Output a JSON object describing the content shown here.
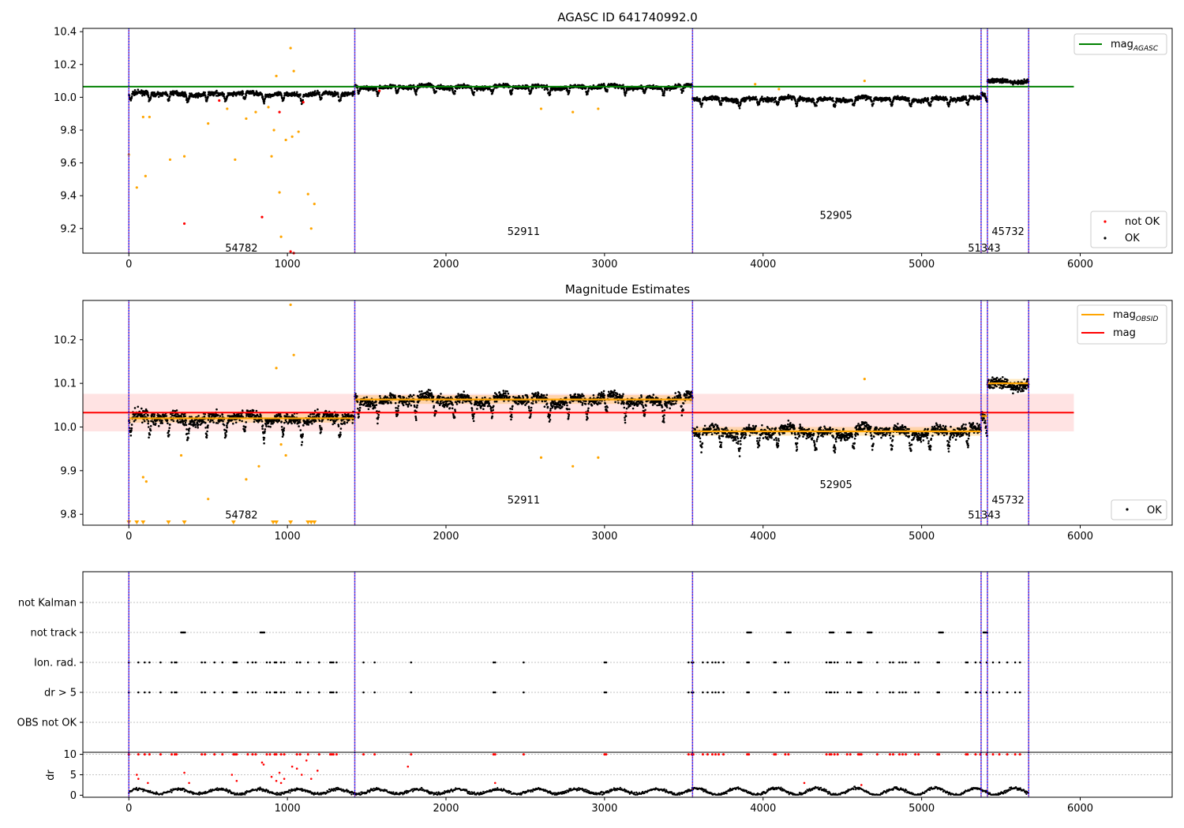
{
  "figure": {
    "title_top": "AGASC ID 641740992.0",
    "title_mid": "Magnitude Estimates"
  },
  "colors": {
    "ok": "#000000",
    "not_ok": "#ff0000",
    "obsid_mag": "#ffa500",
    "agasc_line": "#008000",
    "mean_line": "#ff0000",
    "band_fill": "#ffcccc",
    "obs_divider": "#800080",
    "divider_blue": "#0000ff"
  },
  "chart_data": [
    {
      "type": "scatter",
      "title": "AGASC ID 641740992.0",
      "xlim": [
        -290,
        6580
      ],
      "ylim": [
        9.05,
        10.42
      ],
      "xticks": [
        "0",
        "1000",
        "2000",
        "3000",
        "4000",
        "5000",
        "6000"
      ],
      "yticks": [
        "9.2",
        "9.4",
        "9.6",
        "9.8",
        "10.0",
        "10.2",
        "10.4"
      ],
      "agasc_mag": 10.065,
      "agasc_line_x": [
        -290,
        5960
      ],
      "legend_lines": [
        {
          "name_main": "mag",
          "name_sub": "AGASC"
        }
      ],
      "legend_points": [
        "not OK",
        "OK"
      ],
      "obs_boundaries": [
        0,
        1425,
        3555,
        5375,
        5415,
        5675
      ],
      "obsids": [
        {
          "label": "54782",
          "x": 710,
          "y": 9.06
        },
        {
          "label": "52911",
          "x": 2490,
          "y": 9.16
        },
        {
          "label": "52905",
          "x": 4460,
          "y": 9.26
        },
        {
          "label": "51343",
          "x": 5395,
          "y": 9.06
        },
        {
          "label": "45732",
          "x": 5545,
          "y": 9.16
        }
      ],
      "segments": [
        {
          "x0": 0,
          "x1": 1425,
          "mean": 10.02
        },
        {
          "x0": 1425,
          "x1": 3555,
          "mean": 10.063
        },
        {
          "x0": 3555,
          "x1": 5375,
          "mean": 9.99
        },
        {
          "x0": 5375,
          "x1": 5415,
          "mean": 10.02
        },
        {
          "x0": 5415,
          "x1": 5675,
          "mean": 10.1
        }
      ],
      "outliers_orange": [
        [
          0,
          9.65
        ],
        [
          50,
          9.45
        ],
        [
          90,
          9.88
        ],
        [
          105,
          9.52
        ],
        [
          130,
          9.88
        ],
        [
          260,
          9.62
        ],
        [
          350,
          9.64
        ],
        [
          500,
          9.84
        ],
        [
          620,
          9.93
        ],
        [
          670,
          9.62
        ],
        [
          740,
          9.87
        ],
        [
          800,
          9.91
        ],
        [
          880,
          9.94
        ],
        [
          900,
          9.64
        ],
        [
          915,
          9.8
        ],
        [
          930,
          10.13
        ],
        [
          950,
          9.42
        ],
        [
          960,
          9.15
        ],
        [
          990,
          9.74
        ],
        [
          1020,
          10.3
        ],
        [
          1030,
          9.76
        ],
        [
          1040,
          10.16
        ],
        [
          1070,
          9.79
        ],
        [
          1130,
          9.41
        ],
        [
          1150,
          9.2
        ],
        [
          1170,
          9.35
        ],
        [
          2600,
          9.93
        ],
        [
          2800,
          9.91
        ],
        [
          2960,
          9.93
        ],
        [
          3950,
          10.08
        ],
        [
          4100,
          10.05
        ],
        [
          4640,
          10.1
        ]
      ],
      "outliers_red": [
        [
          350,
          9.23
        ],
        [
          570,
          9.98
        ],
        [
          840,
          9.27
        ],
        [
          950,
          9.91
        ],
        [
          1020,
          9.06
        ],
        [
          1040,
          9.05
        ],
        [
          1100,
          9.97
        ],
        [
          1580,
          10.04
        ]
      ]
    },
    {
      "type": "scatter",
      "title": "Magnitude Estimates",
      "xlim": [
        -290,
        6580
      ],
      "ylim": [
        9.775,
        10.29
      ],
      "xticks": [
        "0",
        "1000",
        "2000",
        "3000",
        "4000",
        "5000",
        "6000"
      ],
      "yticks": [
        "9.8",
        "9.9",
        "10.0",
        "10.1",
        "10.2"
      ],
      "mean_mag": 10.033,
      "band": [
        9.99,
        10.076
      ],
      "band_x": [
        -290,
        5960
      ],
      "legend_lines": [
        {
          "name_main": "mag",
          "name_sub": "OBSID"
        },
        {
          "name_main": "mag",
          "name_sub": ""
        }
      ],
      "legend_points": [
        "OK"
      ],
      "obs_boundaries": [
        0,
        1425,
        3555,
        5375,
        5415,
        5675
      ],
      "obsids": [
        {
          "label": "54782",
          "x": 710,
          "y": 9.79
        },
        {
          "label": "52911",
          "x": 2490,
          "y": 9.825
        },
        {
          "label": "52905",
          "x": 4460,
          "y": 9.86
        },
        {
          "label": "51343",
          "x": 5395,
          "y": 9.79
        },
        {
          "label": "45732",
          "x": 5545,
          "y": 9.825
        }
      ],
      "segments": [
        {
          "x0": 0,
          "x1": 1425,
          "mean": 10.02
        },
        {
          "x0": 1425,
          "x1": 3555,
          "mean": 10.063
        },
        {
          "x0": 3555,
          "x1": 5375,
          "mean": 9.99
        },
        {
          "x0": 5375,
          "x1": 5415,
          "mean": 10.025
        },
        {
          "x0": 5415,
          "x1": 5675,
          "mean": 10.1
        }
      ],
      "outliers_orange": [
        [
          90,
          9.885
        ],
        [
          110,
          9.875
        ],
        [
          330,
          9.935
        ],
        [
          500,
          9.835
        ],
        [
          740,
          9.88
        ],
        [
          820,
          9.91
        ],
        [
          930,
          10.135
        ],
        [
          1040,
          10.165
        ],
        [
          1020,
          10.28
        ],
        [
          990,
          9.935
        ],
        [
          960,
          9.96
        ],
        [
          2600,
          9.93
        ],
        [
          2800,
          9.91
        ],
        [
          2960,
          9.93
        ],
        [
          4640,
          10.11
        ]
      ],
      "clipped_x": [
        0,
        50,
        90,
        250,
        350,
        660,
        910,
        930,
        1020,
        1130,
        1150,
        1170
      ]
    },
    {
      "type": "scatter",
      "title": "",
      "xlim": [
        -290,
        6580
      ],
      "flag_rows": [
        "not Kalman",
        "not track",
        "Ion. rad.",
        "dr > 5",
        "OBS not OK"
      ],
      "obs_boundaries": [
        0,
        1425,
        3555,
        5375,
        5415,
        5675
      ],
      "not_track_x": [
        330,
        830,
        3900,
        4150,
        4420,
        4530,
        4660,
        5110,
        5390
      ],
      "flag_x": [
        0,
        60,
        100,
        130,
        200,
        270,
        290,
        300,
        460,
        480,
        540,
        590,
        660,
        670,
        680,
        750,
        780,
        800,
        870,
        890,
        920,
        930,
        960,
        980,
        1060,
        1080,
        1130,
        1200,
        1270,
        1280,
        1290,
        1310,
        1480,
        1550,
        1780,
        2300,
        2310,
        2490,
        3000,
        3010,
        3530,
        3550,
        3560,
        3620,
        3650,
        3680,
        3700,
        3720,
        3750,
        3900,
        3910,
        4070,
        4080,
        4140,
        4160,
        4400,
        4420,
        4430,
        4450,
        4470,
        4530,
        4550,
        4600,
        4610,
        4620,
        4720,
        4800,
        4820,
        4860,
        4880,
        4900,
        4960,
        4980,
        5100,
        5110,
        5280,
        5290,
        5340,
        5370,
        5410,
        5450,
        5490,
        5540,
        5590,
        5620
      ]
    },
    {
      "type": "scatter",
      "title": "",
      "ylabel": "dr",
      "xlim": [
        -290,
        6580
      ],
      "ylim": [
        -0.5,
        10.5
      ],
      "xticks": [
        "0",
        "1000",
        "2000",
        "3000",
        "4000",
        "5000",
        "6000"
      ],
      "yticks": [
        "0",
        "5",
        "10"
      ],
      "obs_boundaries": [
        0,
        1425,
        3555,
        5375,
        5415,
        5675
      ],
      "dr_outliers": [
        [
          50,
          5.0
        ],
        [
          60,
          4.0
        ],
        [
          120,
          3.0
        ],
        [
          350,
          5.5
        ],
        [
          380,
          3.0
        ],
        [
          650,
          5.0
        ],
        [
          680,
          3.5
        ],
        [
          840,
          8.0
        ],
        [
          850,
          7.5
        ],
        [
          900,
          4.5
        ],
        [
          930,
          3.5
        ],
        [
          950,
          5.5
        ],
        [
          960,
          3.0
        ],
        [
          980,
          4.0
        ],
        [
          1030,
          7.0
        ],
        [
          1060,
          6.5
        ],
        [
          1090,
          5.0
        ],
        [
          1120,
          8.5
        ],
        [
          1150,
          4.0
        ],
        [
          1190,
          6.0
        ],
        [
          1760,
          7.0
        ],
        [
          2310,
          3.0
        ],
        [
          4260,
          3.0
        ],
        [
          4620,
          2.5
        ]
      ]
    }
  ]
}
